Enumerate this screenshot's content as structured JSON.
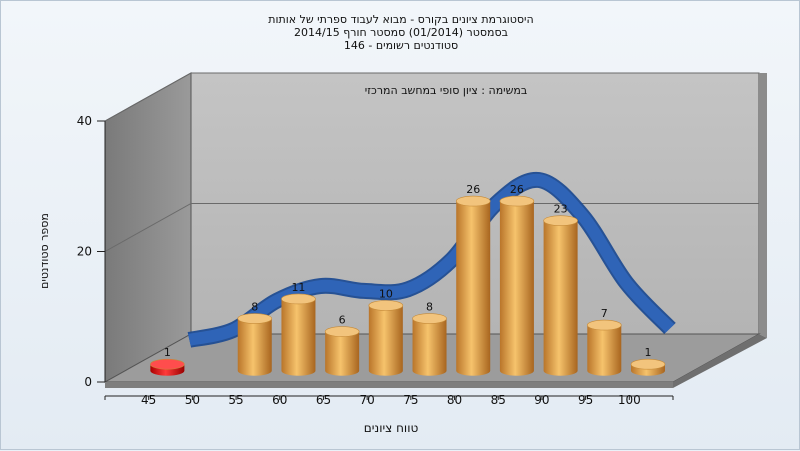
{
  "chart_data": {
    "type": "bar",
    "title": [
      "היסטוגרמת ציונים בקורס - מבוא לעבוד ספרתי של אותות",
      "בסמסטר  (01/2014)  סמסטר חורף 2014/15",
      "146 - סטודנטים רשומים"
    ],
    "subtitle": "במשימה : ציון סופי במחשב המרכזי",
    "xlabel": "טווח ציונים",
    "ylabel": "מספר סטודנטים",
    "ylim": [
      0,
      40
    ],
    "yticks": [
      0,
      20,
      40
    ],
    "categories": [
      "45",
      "50",
      "55",
      "60",
      "65",
      "70",
      "75",
      "80",
      "85",
      "90",
      "95",
      "100"
    ],
    "values": [
      1,
      0,
      8,
      11,
      6,
      10,
      8,
      26,
      26,
      23,
      7,
      1
    ],
    "data_labels": [
      "1",
      "",
      "8",
      "11",
      "6",
      "10",
      "8",
      "26",
      "26",
      "23",
      "7",
      "1"
    ],
    "bar_colors": [
      "#dd1111",
      "#e6a544",
      "#e6a544",
      "#e6a544",
      "#e6a544",
      "#e6a544",
      "#e6a544",
      "#e6a544",
      "#e6a544",
      "#e6a544",
      "#e6a544",
      "#e6a544"
    ],
    "trend_color": "#2f64b7",
    "grid": true
  }
}
